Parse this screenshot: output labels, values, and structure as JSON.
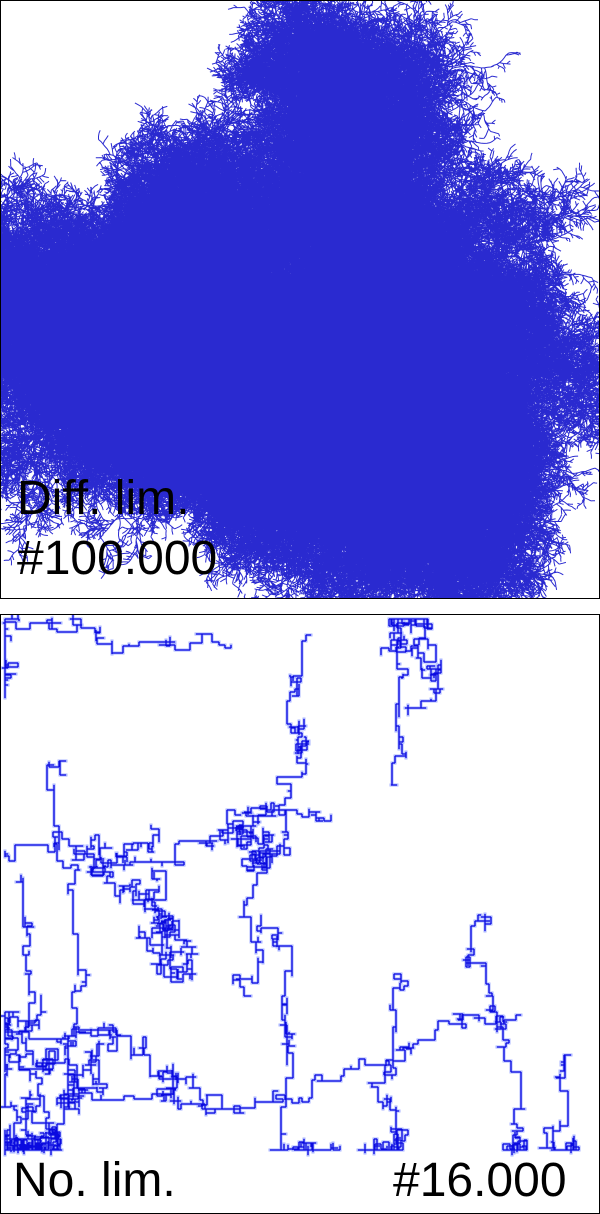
{
  "panels": {
    "top": {
      "line1": "Diff. lim.",
      "line2": "#100.000",
      "color": "#2a2ad0"
    },
    "bottom": {
      "left_label": "No. lim.",
      "right_label": "#16.000",
      "color": "#0a0ae0",
      "halo": "#aab4ff"
    }
  }
}
